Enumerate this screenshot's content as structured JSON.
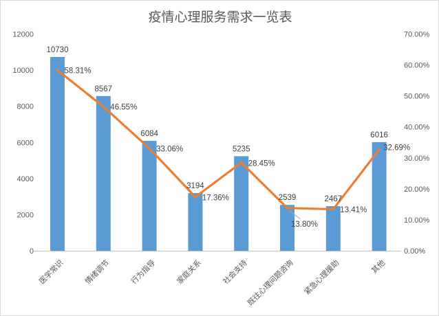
{
  "chart_data": {
    "type": "bar",
    "subtype": "combo-bar-line",
    "title": "疫情心理服务需求一览表",
    "categories": [
      "医学常识",
      "情绪调节",
      "行为指导",
      "家庭关系",
      "社会支持",
      "既往心理问题咨询",
      "紧急心理援助",
      "其他"
    ],
    "series": [
      {
        "name": "count-bars",
        "type": "bar",
        "axis": "left",
        "values": [
          10730,
          8567,
          6084,
          3194,
          5235,
          2539,
          2467,
          6016
        ],
        "labels": [
          "10730",
          "8567",
          "6084",
          "3194",
          "5235",
          "2539",
          "2467",
          "6016"
        ],
        "color": "#5b9bd5"
      },
      {
        "name": "percent-line",
        "type": "line",
        "axis": "right",
        "values": [
          58.31,
          46.55,
          33.06,
          17.36,
          28.45,
          13.8,
          13.41,
          32.69
        ],
        "labels": [
          "58.31%",
          "46.55%",
          "33.06%",
          "17.36%",
          "28.45%",
          "13.80%",
          "13.41%",
          "32.69%"
        ],
        "label_placement": [
          "right",
          "right",
          "right",
          "right",
          "right",
          "below-leader",
          "right",
          "right"
        ],
        "color": "#ed7d31"
      }
    ],
    "left_axis": {
      "min": 0,
      "max": 12000,
      "step": 2000,
      "tick_labels": [
        "0",
        "2000",
        "4000",
        "6000",
        "8000",
        "10000",
        "12000"
      ]
    },
    "right_axis": {
      "min": 0,
      "max": 70,
      "step": 10,
      "tick_labels": [
        "0.00%",
        "10.00%",
        "20.00%",
        "30.00%",
        "40.00%",
        "50.00%",
        "60.00%",
        "70.00%"
      ]
    },
    "gridlines": false,
    "legend": "none",
    "colors": {
      "bar": "#5b9bd5",
      "line": "#ed7d31",
      "title_text": "#595959",
      "axis_text": "#595959",
      "data_label_text": "#404040",
      "axis_line": "#bfbfbf",
      "leader_line": "#a6a6a6",
      "border": "#d9d9d9",
      "background": "#ffffff"
    }
  }
}
